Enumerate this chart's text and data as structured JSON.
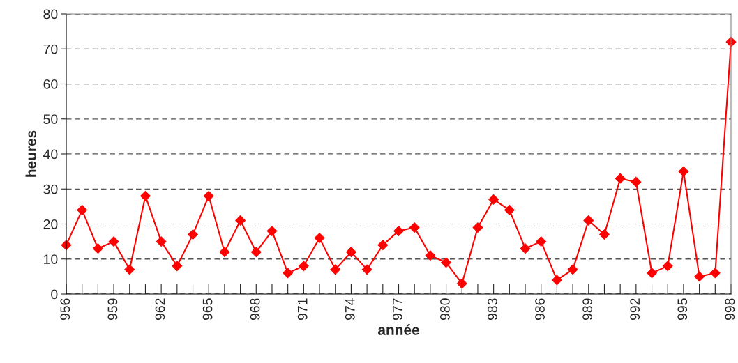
{
  "chart_data": {
    "type": "line",
    "xlabel": "année",
    "ylabel": "heures",
    "categories": [
      "956",
      null,
      null,
      "959",
      null,
      null,
      "962",
      null,
      null,
      "965",
      null,
      null,
      "968",
      null,
      null,
      "971",
      null,
      null,
      "974",
      null,
      null,
      "977",
      null,
      null,
      "980",
      null,
      null,
      "983",
      null,
      null,
      "986",
      null,
      null,
      "989",
      null,
      null,
      "992",
      null,
      null,
      "995",
      null,
      null,
      "998"
    ],
    "series": [
      {
        "color": "#ff0000",
        "values": [
          14,
          24,
          13,
          15,
          7,
          28,
          15,
          8,
          17,
          28,
          12,
          21,
          12,
          18,
          6,
          8,
          16,
          7,
          12,
          7,
          14,
          18,
          19,
          11,
          9,
          3,
          19,
          27,
          24,
          13,
          15,
          4,
          7,
          21,
          17,
          33,
          32,
          6,
          8,
          35,
          5,
          6,
          72
        ]
      }
    ],
    "ylim": [
      0,
      80
    ],
    "yticks": [
      0,
      10,
      20,
      30,
      40,
      50,
      60,
      70,
      80
    ],
    "grid": "y",
    "marker": "diamond",
    "line_style": "solid"
  }
}
